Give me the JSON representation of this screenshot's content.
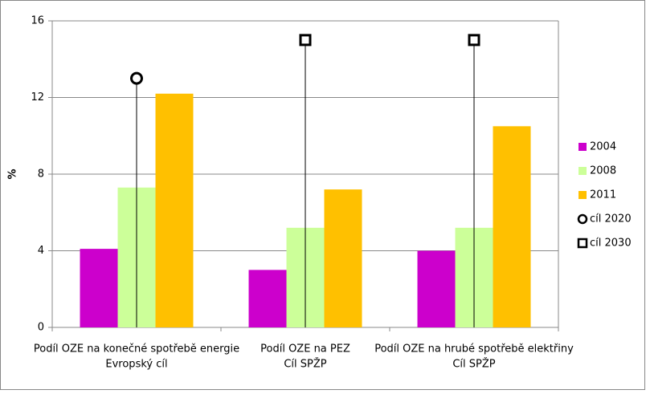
{
  "chart_data": {
    "type": "bar",
    "categories": [
      [
        "Podíl OZE na konečné spotřebě energie",
        "Evropský cíl"
      ],
      [
        "Podíl OZE na PEZ",
        "Cíl SPŽP"
      ],
      [
        "Podíl OZE na hrubé spotřebě elektřiny",
        "Cíl SPŽP"
      ]
    ],
    "series": [
      {
        "name": "2004",
        "color": "#cc00cc",
        "values": [
          4.1,
          3.0,
          4.0
        ]
      },
      {
        "name": "2008",
        "color": "#ccff99",
        "values": [
          7.3,
          5.2,
          5.2
        ]
      },
      {
        "name": "2011",
        "color": "#ffc000",
        "values": [
          12.2,
          7.2,
          10.5
        ]
      },
      {
        "name": "cíl 2020",
        "type": "marker",
        "marker": "circle",
        "color": "#000000",
        "values": [
          13,
          null,
          null
        ]
      },
      {
        "name": "cíl 2030",
        "type": "marker",
        "marker": "square",
        "color": "#000000",
        "values": [
          null,
          15,
          15
        ]
      }
    ],
    "ylabel": "%",
    "ylim": [
      0,
      16
    ],
    "yticks": [
      0,
      4,
      8,
      12,
      16
    ],
    "grid": true,
    "legend": "right"
  }
}
